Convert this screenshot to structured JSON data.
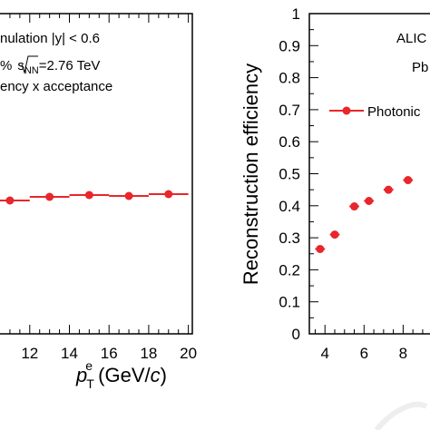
{
  "chart_data": [
    {
      "type": "scatter",
      "panel": "left",
      "title": "",
      "xlabel_base": "p",
      "xlabel_sub": "T",
      "xlabel_sup": "e",
      "xlabel_unit_open": " (GeV/",
      "xlabel_unit_var": "c",
      "xlabel_unit_close": ")",
      "ylabel": "",
      "xlim": [
        10.5,
        20.2
      ],
      "xticks": [
        "12",
        "14",
        "16",
        "18",
        "20"
      ],
      "annotations": {
        "line1": "nulation |y| < 0.6",
        "line2_prefix": "%",
        "line2_sqrt": "s",
        "line2_sub": "NN",
        "line2_suffix": "=2.76 TeV",
        "line3": "ency x acceptance"
      },
      "grid": false,
      "series": [
        {
          "color": "#e8262b",
          "points": [
            {
              "x": 11,
              "xerr": 1.0
            },
            {
              "x": 13,
              "xerr": 1.0
            },
            {
              "x": 15,
              "xerr": 1.0
            },
            {
              "x": 17,
              "xerr": 1.0
            },
            {
              "x": 19,
              "xerr": 1.0
            }
          ]
        }
      ]
    },
    {
      "type": "scatter",
      "panel": "right",
      "title": "",
      "ylabel": "Reconstruction efficiency",
      "xlabel": "",
      "ylim": [
        0,
        1
      ],
      "xlim": [
        3.2,
        9.7
      ],
      "yticks": [
        "0",
        "0.1",
        "0.2",
        "0.3",
        "0.4",
        "0.5",
        "0.6",
        "0.7",
        "0.8",
        "0.9",
        "1"
      ],
      "xticks": [
        "4",
        "6",
        "8"
      ],
      "annotations": {
        "experiment": "ALIC",
        "system": "Pb"
      },
      "legend": {
        "label": "Photonic",
        "placement": "top-right"
      },
      "grid": false,
      "series": [
        {
          "name": "Photonic",
          "color": "#e8262b",
          "points": [
            {
              "x": 3.75,
              "y": 0.265,
              "xerr": 0.25
            },
            {
              "x": 4.5,
              "y": 0.31,
              "xerr": 0.25
            },
            {
              "x": 5.5,
              "y": 0.398,
              "xerr": 0.25
            },
            {
              "x": 6.25,
              "y": 0.415,
              "xerr": 0.25
            },
            {
              "x": 7.25,
              "y": 0.45,
              "xerr": 0.25
            },
            {
              "x": 8.25,
              "y": 0.48,
              "xerr": 0.25
            }
          ]
        }
      ]
    }
  ]
}
